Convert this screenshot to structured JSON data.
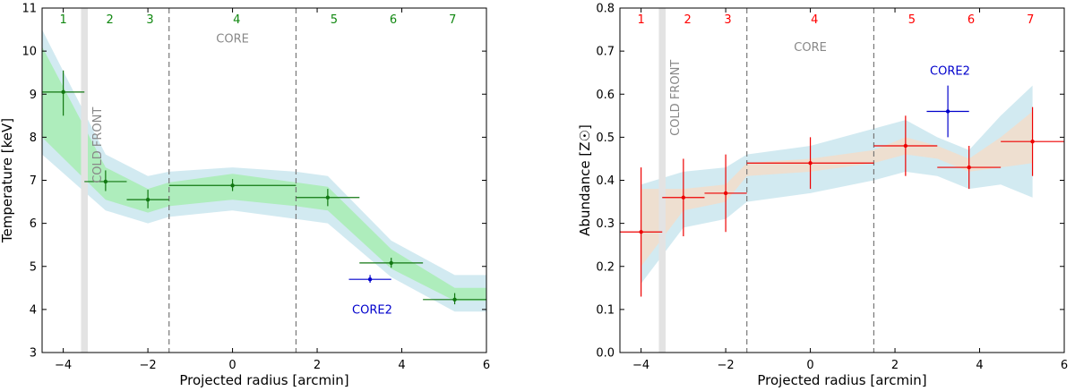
{
  "chart_data": [
    {
      "type": "scatter",
      "panel": "left",
      "xlabel": "Projected radius [arcmin]",
      "ylabel": "Temperature [keV]",
      "xlim": [
        -4.5,
        6
      ],
      "ylim": [
        3,
        11
      ],
      "xticks": [
        -4,
        -2,
        0,
        2,
        4,
        6
      ],
      "xtick_labels": [
        "−4",
        "−2",
        "0",
        "2",
        "4",
        "6"
      ],
      "yticks": [
        3,
        4,
        5,
        6,
        7,
        8,
        9,
        10,
        11
      ],
      "ytick_labels": [
        "3",
        "4",
        "5",
        "6",
        "7",
        "8",
        "9",
        "10",
        "11"
      ],
      "region_numbers": [
        {
          "label": "1",
          "x": -4.0
        },
        {
          "label": "2",
          "x": -2.9
        },
        {
          "label": "3",
          "x": -1.95
        },
        {
          "label": "4",
          "x": 0.1
        },
        {
          "label": "5",
          "x": 2.4
        },
        {
          "label": "6",
          "x": 3.8
        },
        {
          "label": "7",
          "x": 5.2
        }
      ],
      "region_number_color": "#118811",
      "annotations": [
        {
          "text": "COLD FRONT",
          "x": -3.1,
          "y": 8.7,
          "rotate": true,
          "color": "#888888"
        },
        {
          "text": "CORE",
          "x": 0.0,
          "y": 10.2,
          "rotate": false,
          "color": "#888888"
        },
        {
          "text": "CORE2",
          "x": 3.3,
          "y": 3.9,
          "rotate": false,
          "color": "#0000cc"
        }
      ],
      "cold_front_band": [
        -3.58,
        -3.42
      ],
      "dashed_lines": [
        -1.5,
        1.5
      ],
      "bands": [
        {
          "name": "outer",
          "color": "#add8e6",
          "opacity": 0.55,
          "x": [
            -4.5,
            -3.0,
            -2.0,
            -1.5,
            0.0,
            1.5,
            2.25,
            3.75,
            5.25,
            6.0
          ],
          "lower": [
            7.6,
            6.3,
            6.0,
            6.15,
            6.3,
            6.1,
            6.0,
            4.75,
            3.95,
            3.95
          ],
          "upper": [
            10.5,
            7.6,
            7.1,
            7.2,
            7.3,
            7.2,
            7.1,
            5.6,
            4.8,
            4.8
          ]
        },
        {
          "name": "inner",
          "color": "#90ee90",
          "opacity": 0.55,
          "x": [
            -4.5,
            -3.0,
            -2.0,
            -1.5,
            0.0,
            1.5,
            2.25,
            3.75,
            5.25,
            6.0
          ],
          "lower": [
            8.0,
            6.55,
            6.25,
            6.4,
            6.55,
            6.4,
            6.3,
            4.95,
            4.2,
            4.2
          ],
          "upper": [
            10.1,
            7.3,
            6.8,
            6.95,
            7.15,
            6.95,
            6.85,
            5.4,
            4.5,
            4.5
          ]
        }
      ],
      "series": [
        {
          "name": "regions",
          "color": "#117711",
          "points": [
            {
              "x": -4.0,
              "y": 9.05,
              "xerr": 0.5,
              "ylo": 8.5,
              "yhi": 9.55
            },
            {
              "x": -3.0,
              "y": 6.97,
              "xerr": 0.5,
              "ylo": 6.75,
              "yhi": 7.23
            },
            {
              "x": -2.0,
              "y": 6.55,
              "xerr": 0.5,
              "ylo": 6.35,
              "yhi": 6.78
            },
            {
              "x": 0.0,
              "y": 6.88,
              "xerr": 1.5,
              "ylo": 6.75,
              "yhi": 7.03
            },
            {
              "x": 2.25,
              "y": 6.6,
              "xerr": 0.75,
              "ylo": 6.4,
              "yhi": 6.8
            },
            {
              "x": 3.75,
              "y": 5.08,
              "xerr": 0.75,
              "ylo": 4.97,
              "yhi": 5.2
            },
            {
              "x": 5.25,
              "y": 4.23,
              "xerr": 0.75,
              "ylo": 4.12,
              "yhi": 4.38
            }
          ]
        },
        {
          "name": "CORE2",
          "color": "#0000cc",
          "points": [
            {
              "x": 3.25,
              "y": 4.7,
              "xerr": 0.5,
              "ylo": 4.62,
              "yhi": 4.8
            }
          ]
        }
      ]
    },
    {
      "type": "scatter",
      "panel": "right",
      "xlabel": "Projected radius [arcmin]",
      "ylabel": "Abundance [Z☉]",
      "xlim": [
        -4.5,
        6
      ],
      "ylim": [
        0.0,
        0.8
      ],
      "xticks": [
        -4,
        -2,
        0,
        2,
        4,
        6
      ],
      "xtick_labels": [
        "−4",
        "−2",
        "0",
        "2",
        "4",
        "6"
      ],
      "yticks": [
        0.0,
        0.1,
        0.2,
        0.3,
        0.4,
        0.5,
        0.6,
        0.7,
        0.8
      ],
      "ytick_labels": [
        "0.0",
        "0.1",
        "0.2",
        "0.3",
        "0.4",
        "0.5",
        "0.6",
        "0.7",
        "0.8"
      ],
      "region_numbers": [
        {
          "label": "1",
          "x": -4.0
        },
        {
          "label": "2",
          "x": -2.9
        },
        {
          "label": "3",
          "x": -1.95
        },
        {
          "label": "4",
          "x": 0.1
        },
        {
          "label": "5",
          "x": 2.4
        },
        {
          "label": "6",
          "x": 3.8
        },
        {
          "label": "7",
          "x": 5.2
        }
      ],
      "region_number_color": "#ff0000",
      "annotations": [
        {
          "text": "COLD FRONT",
          "x": -3.1,
          "y": 0.68,
          "rotate": true,
          "color": "#888888"
        },
        {
          "text": "CORE",
          "x": 0.0,
          "y": 0.7,
          "rotate": false,
          "color": "#888888"
        },
        {
          "text": "CORE2",
          "x": 3.3,
          "y": 0.645,
          "rotate": false,
          "color": "#0000cc"
        }
      ],
      "cold_front_band": [
        -3.58,
        -3.42
      ],
      "dashed_lines": [
        -1.5,
        1.5
      ],
      "bands": [
        {
          "name": "outer",
          "color": "#add8e6",
          "opacity": 0.55,
          "x": [
            -4.0,
            -3.0,
            -2.0,
            -1.5,
            0.0,
            1.5,
            2.25,
            3.0,
            3.75,
            4.5,
            5.25
          ],
          "lower": [
            0.16,
            0.29,
            0.31,
            0.35,
            0.37,
            0.4,
            0.42,
            0.41,
            0.38,
            0.39,
            0.36
          ],
          "upper": [
            0.39,
            0.42,
            0.43,
            0.46,
            0.48,
            0.52,
            0.54,
            0.5,
            0.47,
            0.55,
            0.62
          ]
        },
        {
          "name": "inner",
          "color": "#f5dcc8",
          "opacity": 0.8,
          "x": [
            -4.0,
            -3.0,
            -2.0,
            -1.5,
            0.0,
            1.5,
            2.25,
            3.0,
            3.75,
            4.5,
            5.25
          ],
          "lower": [
            0.2,
            0.33,
            0.35,
            0.41,
            0.42,
            0.44,
            0.46,
            0.45,
            0.42,
            0.43,
            0.44
          ],
          "upper": [
            0.38,
            0.38,
            0.39,
            0.44,
            0.45,
            0.47,
            0.5,
            0.48,
            0.45,
            0.5,
            0.56
          ]
        }
      ],
      "series": [
        {
          "name": "regions",
          "color": "#ee0000",
          "points": [
            {
              "x": -4.0,
              "y": 0.28,
              "xerr": 0.5,
              "ylo": 0.13,
              "yhi": 0.43
            },
            {
              "x": -3.0,
              "y": 0.36,
              "xerr": 0.5,
              "ylo": 0.27,
              "yhi": 0.45
            },
            {
              "x": -2.0,
              "y": 0.37,
              "xerr": 0.5,
              "ylo": 0.28,
              "yhi": 0.46
            },
            {
              "x": 0.0,
              "y": 0.44,
              "xerr": 1.5,
              "ylo": 0.38,
              "yhi": 0.5
            },
            {
              "x": 2.25,
              "y": 0.48,
              "xerr": 0.75,
              "ylo": 0.41,
              "yhi": 0.55
            },
            {
              "x": 3.75,
              "y": 0.43,
              "xerr": 0.75,
              "ylo": 0.38,
              "yhi": 0.48
            },
            {
              "x": 5.25,
              "y": 0.49,
              "xerr": 0.75,
              "ylo": 0.41,
              "yhi": 0.57
            }
          ]
        },
        {
          "name": "CORE2",
          "color": "#0000cc",
          "points": [
            {
              "x": 3.25,
              "y": 0.56,
              "xerr": 0.5,
              "ylo": 0.5,
              "yhi": 0.62
            }
          ]
        }
      ]
    }
  ]
}
